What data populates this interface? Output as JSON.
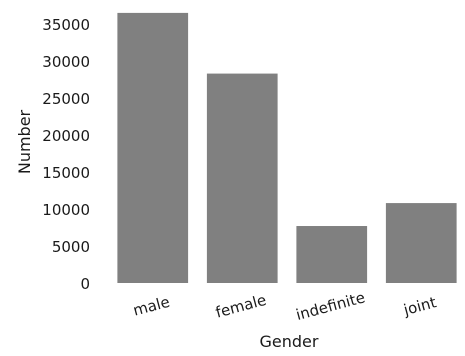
{
  "chart_data": {
    "type": "bar",
    "categories": [
      "male",
      "female",
      "indefinite",
      "joint"
    ],
    "values": [
      36500,
      28300,
      7700,
      10800
    ],
    "xlabel": "Gender",
    "ylabel": "Number",
    "ylim": [
      0,
      36500
    ],
    "yticks": [
      0,
      5000,
      10000,
      15000,
      20000,
      25000,
      30000,
      35000
    ],
    "bar_color": "#808080",
    "grid": false
  }
}
